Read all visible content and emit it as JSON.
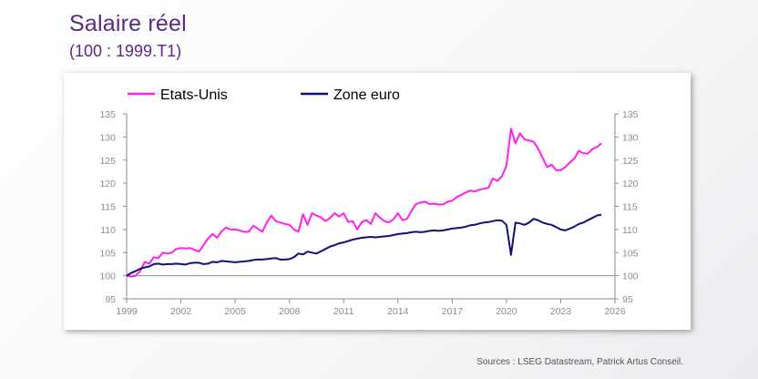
{
  "title": "Salaire réel",
  "subtitle": "(100 : 1999.T1)",
  "source": "Sources : LSEG Datastream, Patrick Artus Conseil.",
  "colors": {
    "us": "#ff1fef",
    "euro": "#10107a",
    "axis": "#8c8c8c",
    "title": "#5b2a82"
  },
  "chart_data": {
    "type": "line",
    "title": "Salaire réel",
    "subtitle": "(100 : 1999.T1)",
    "xlabel": "",
    "ylabel": "",
    "xlim": [
      1999,
      2026
    ],
    "ylim": [
      95,
      135
    ],
    "x_ticks": [
      1999,
      2002,
      2005,
      2008,
      2011,
      2014,
      2017,
      2020,
      2023,
      2026
    ],
    "y_ticks": [
      95,
      100,
      105,
      110,
      115,
      120,
      125,
      130,
      135
    ],
    "legend_position": "top-left",
    "grid": false,
    "series": [
      {
        "name": "Etats-Unis",
        "color": "#ff1fef",
        "x": [
          1999.0,
          1999.25,
          1999.5,
          1999.75,
          2000.0,
          2000.25,
          2000.5,
          2000.75,
          2001.0,
          2001.25,
          2001.5,
          2001.75,
          2002.0,
          2002.25,
          2002.5,
          2002.75,
          2003.0,
          2003.25,
          2003.5,
          2003.75,
          2004.0,
          2004.25,
          2004.5,
          2004.75,
          2005.0,
          2005.25,
          2005.5,
          2005.75,
          2006.0,
          2006.25,
          2006.5,
          2006.75,
          2007.0,
          2007.25,
          2007.5,
          2007.75,
          2008.0,
          2008.25,
          2008.5,
          2008.75,
          2009.0,
          2009.25,
          2009.5,
          2009.75,
          2010.0,
          2010.25,
          2010.5,
          2010.75,
          2011.0,
          2011.25,
          2011.5,
          2011.75,
          2012.0,
          2012.25,
          2012.5,
          2012.75,
          2013.0,
          2013.25,
          2013.5,
          2013.75,
          2014.0,
          2014.25,
          2014.5,
          2014.75,
          2015.0,
          2015.25,
          2015.5,
          2015.75,
          2016.0,
          2016.25,
          2016.5,
          2016.75,
          2017.0,
          2017.25,
          2017.5,
          2017.75,
          2018.0,
          2018.25,
          2018.5,
          2018.75,
          2019.0,
          2019.25,
          2019.5,
          2019.75,
          2020.0,
          2020.25,
          2020.5,
          2020.75,
          2021.0,
          2021.25,
          2021.5,
          2021.75,
          2022.0,
          2022.25,
          2022.5,
          2022.75,
          2023.0,
          2023.25,
          2023.5,
          2023.75,
          2024.0,
          2024.25,
          2024.5,
          2024.75,
          2025.0,
          2025.25
        ],
        "values": [
          100.0,
          99.8,
          100.0,
          101.0,
          103.0,
          102.6,
          104.0,
          103.8,
          105.0,
          104.8,
          105.0,
          105.8,
          106.0,
          105.9,
          106.0,
          105.6,
          105.2,
          106.6,
          108.0,
          109.0,
          108.2,
          109.6,
          110.4,
          110.0,
          110.0,
          109.8,
          109.5,
          109.5,
          110.8,
          110.2,
          109.5,
          111.5,
          113.0,
          111.8,
          111.5,
          111.2,
          111.0,
          110.0,
          109.5,
          113.3,
          111.0,
          113.5,
          113.0,
          112.6,
          111.8,
          112.5,
          113.5,
          112.8,
          113.5,
          111.6,
          111.8,
          110.0,
          111.6,
          112.0,
          111.2,
          113.5,
          112.6,
          111.8,
          111.5,
          112.2,
          113.5,
          112.0,
          112.3,
          114.0,
          115.5,
          115.8,
          116.0,
          115.5,
          115.6,
          115.4,
          115.4,
          116.0,
          116.2,
          117.0,
          117.5,
          118.0,
          118.4,
          118.2,
          118.6,
          118.8,
          119.0,
          121.0,
          120.5,
          121.5,
          123.8,
          131.8,
          128.6,
          130.8,
          129.5,
          129.2,
          129.0,
          127.5,
          125.5,
          123.5,
          124.0,
          122.8,
          122.8,
          123.5,
          124.5,
          125.3,
          127.0,
          126.5,
          126.4,
          127.4,
          127.8,
          128.6
        ]
      },
      {
        "name": "Zone euro",
        "color": "#10107a",
        "x": [
          1999.0,
          1999.25,
          1999.5,
          1999.75,
          2000.0,
          2000.25,
          2000.5,
          2000.75,
          2001.0,
          2001.25,
          2001.5,
          2001.75,
          2002.0,
          2002.25,
          2002.5,
          2002.75,
          2003.0,
          2003.25,
          2003.5,
          2003.75,
          2004.0,
          2004.25,
          2004.5,
          2004.75,
          2005.0,
          2005.25,
          2005.5,
          2005.75,
          2006.0,
          2006.25,
          2006.5,
          2006.75,
          2007.0,
          2007.25,
          2007.5,
          2007.75,
          2008.0,
          2008.25,
          2008.5,
          2008.75,
          2009.0,
          2009.25,
          2009.5,
          2009.75,
          2010.0,
          2010.25,
          2010.5,
          2010.75,
          2011.0,
          2011.25,
          2011.5,
          2011.75,
          2012.0,
          2012.25,
          2012.5,
          2012.75,
          2013.0,
          2013.25,
          2013.5,
          2013.75,
          2014.0,
          2014.25,
          2014.5,
          2014.75,
          2015.0,
          2015.25,
          2015.5,
          2015.75,
          2016.0,
          2016.25,
          2016.5,
          2016.75,
          2017.0,
          2017.25,
          2017.5,
          2017.75,
          2018.0,
          2018.25,
          2018.5,
          2018.75,
          2019.0,
          2019.25,
          2019.5,
          2019.75,
          2020.0,
          2020.25,
          2020.5,
          2020.75,
          2021.0,
          2021.25,
          2021.5,
          2021.75,
          2022.0,
          2022.25,
          2022.5,
          2022.75,
          2023.0,
          2023.25,
          2023.5,
          2023.75,
          2024.0,
          2024.25,
          2024.5,
          2024.75,
          2025.0,
          2025.25
        ],
        "values": [
          100.0,
          100.6,
          101.0,
          101.5,
          101.8,
          102.0,
          102.5,
          102.6,
          102.4,
          102.5,
          102.5,
          102.6,
          102.5,
          102.4,
          102.7,
          102.8,
          102.8,
          102.5,
          102.6,
          103.0,
          102.9,
          103.2,
          103.1,
          103.0,
          102.9,
          103.0,
          103.1,
          103.2,
          103.4,
          103.5,
          103.5,
          103.6,
          103.7,
          103.8,
          103.5,
          103.5,
          103.6,
          104.0,
          104.8,
          104.6,
          105.2,
          105.0,
          104.8,
          105.3,
          105.8,
          106.3,
          106.6,
          107.0,
          107.2,
          107.5,
          107.8,
          108.0,
          108.2,
          108.3,
          108.4,
          108.3,
          108.4,
          108.5,
          108.6,
          108.8,
          109.0,
          109.1,
          109.2,
          109.4,
          109.5,
          109.4,
          109.5,
          109.7,
          109.8,
          109.7,
          109.8,
          110.0,
          110.2,
          110.3,
          110.4,
          110.6,
          110.9,
          111.0,
          111.3,
          111.5,
          111.6,
          111.8,
          112.0,
          111.9,
          111.0,
          104.5,
          111.5,
          111.3,
          111.0,
          111.5,
          112.3,
          112.0,
          111.5,
          111.2,
          111.0,
          110.5,
          110.0,
          109.8,
          110.2,
          110.6,
          111.2,
          111.5,
          112.0,
          112.5,
          113.0,
          113.2
        ]
      }
    ]
  }
}
